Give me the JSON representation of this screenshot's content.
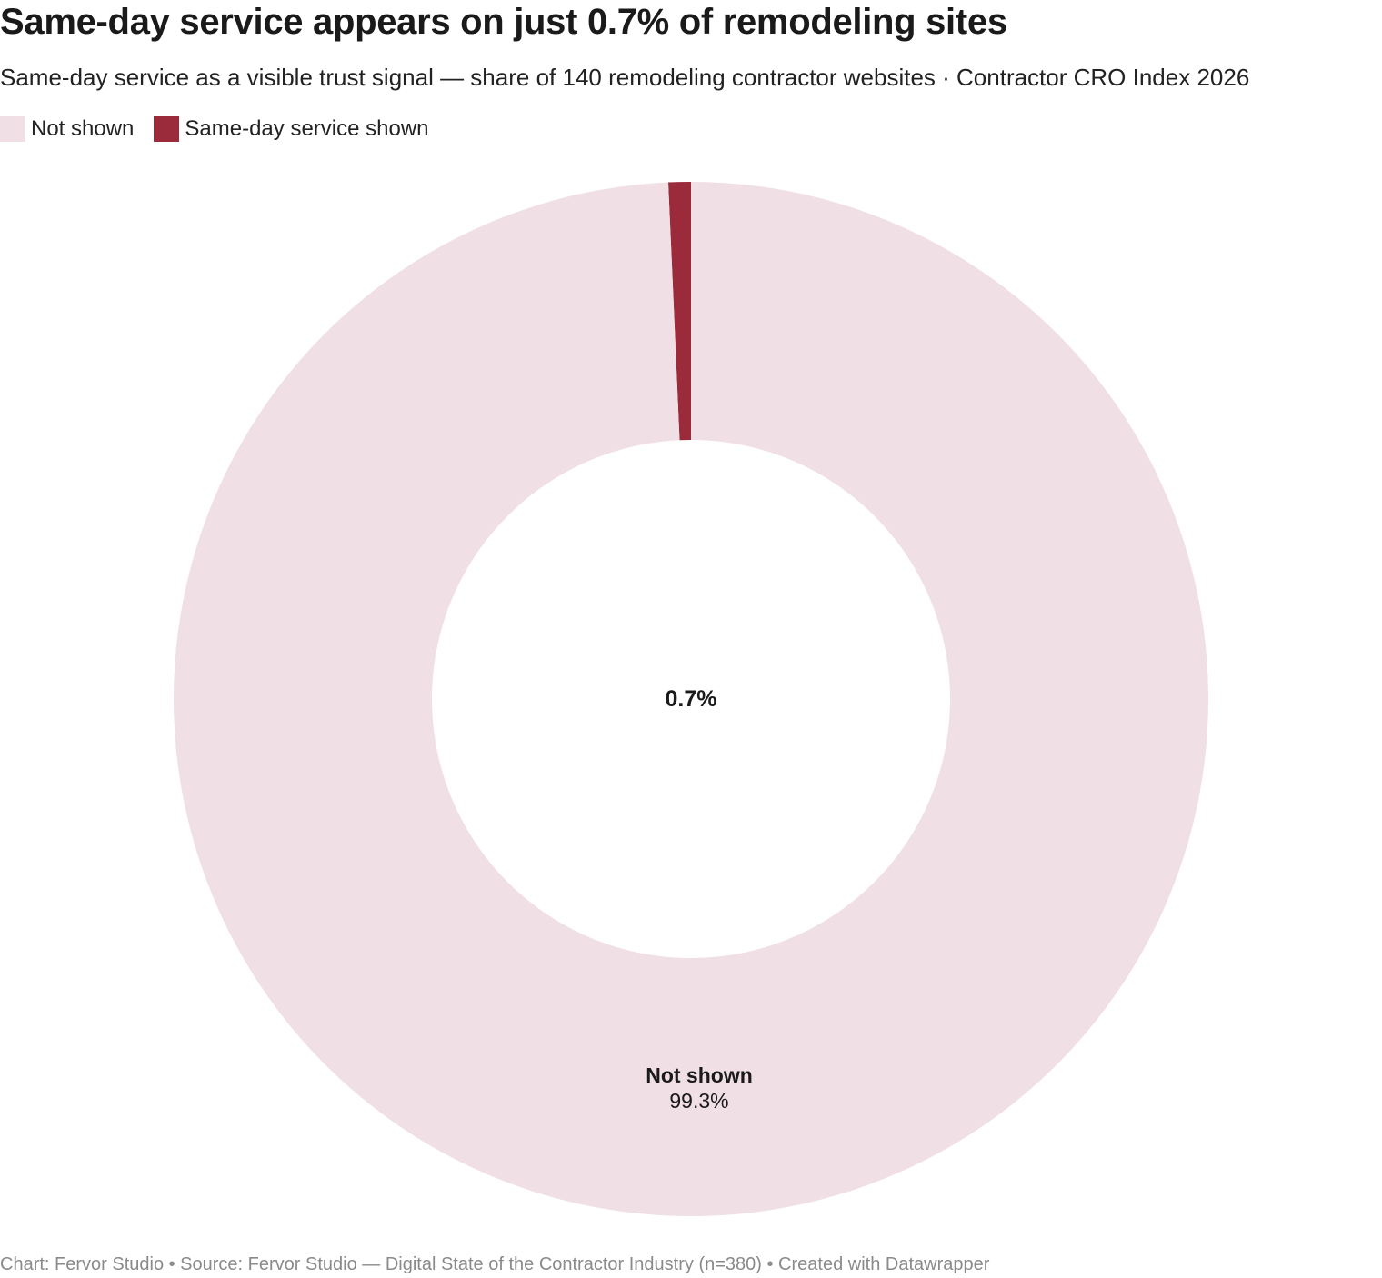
{
  "header": {
    "title": "Same-day service appears on just 0.7% of remodeling sites",
    "subtitle": "Same-day service as a visible trust signal — share of 140 remodeling contractor websites · Contractor CRO Index 2026"
  },
  "legend": {
    "items": [
      {
        "label": "Not shown",
        "color": "#f0dfe5"
      },
      {
        "label": "Same-day service shown",
        "color": "#9b2a3b"
      }
    ]
  },
  "chart_data": {
    "type": "pie",
    "variant": "donut",
    "legend_position": "top-left",
    "slices": [
      {
        "label": "Same-day service shown",
        "value": 0.7,
        "color": "#9b2a3b"
      },
      {
        "label": "Not shown",
        "value": 99.3,
        "color": "#f0dfe5"
      }
    ],
    "center_label": "0.7%",
    "annotations": [
      {
        "label": "Not shown",
        "value_text": "99.3%"
      }
    ]
  },
  "footer": {
    "credit": "Chart: Fervor Studio • Source: Fervor Studio — Digital State of the Contractor Industry (n=380) • Created with Datawrapper"
  }
}
